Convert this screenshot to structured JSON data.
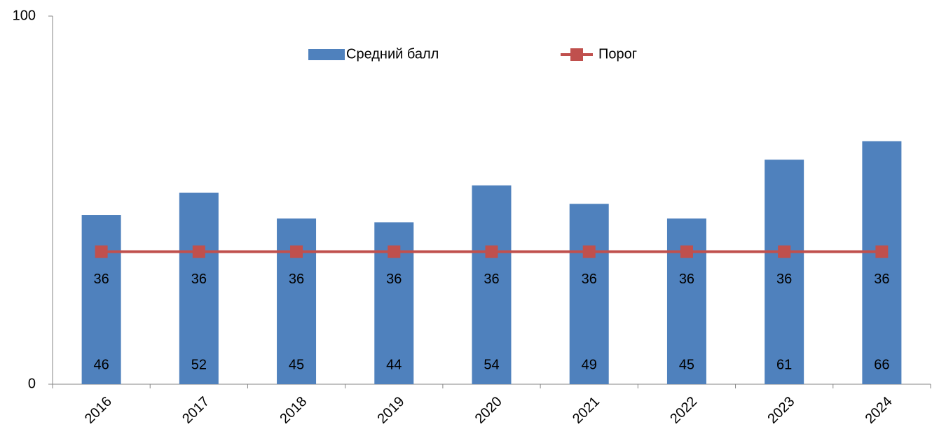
{
  "chart_data": {
    "type": "bar",
    "categories": [
      "2016",
      "2017",
      "2018",
      "2019",
      "2020",
      "2021",
      "2022",
      "2023",
      "2024"
    ],
    "series": [
      {
        "name": "Средний балл",
        "type": "bar",
        "color": "#4f81bd",
        "values": [
          46,
          52,
          45,
          44,
          54,
          49,
          45,
          61,
          66
        ]
      },
      {
        "name": "Порог",
        "type": "line",
        "color": "#c0504d",
        "values": [
          36,
          36,
          36,
          36,
          36,
          36,
          36,
          36,
          36
        ]
      }
    ],
    "ylim": [
      0,
      100
    ],
    "yticks": [
      0,
      100
    ],
    "grid": false,
    "legend": "top"
  }
}
